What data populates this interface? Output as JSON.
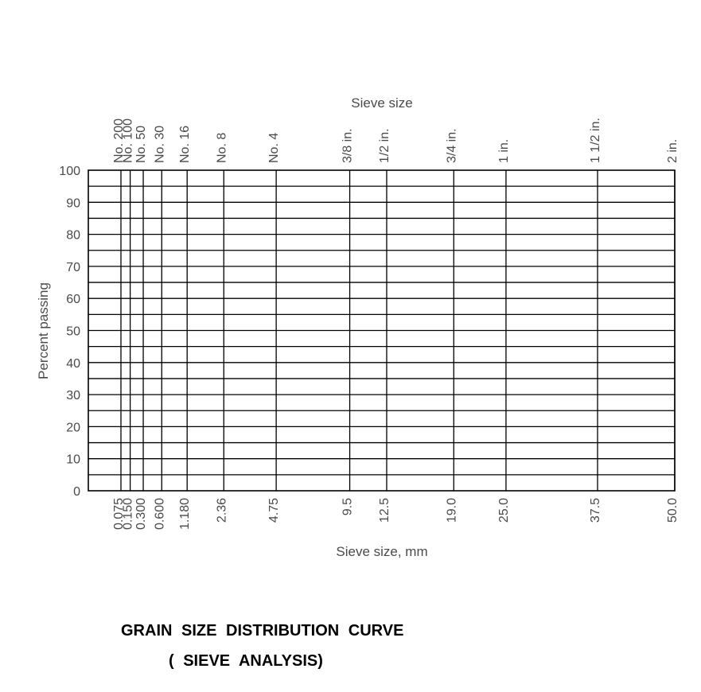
{
  "chart_data": {
    "type": "line",
    "title": "",
    "top_axis_label": "Sieve size",
    "xlabel": "Sieve size, mm",
    "ylabel": "Percent passing",
    "ylim": [
      0,
      100
    ],
    "y_ticks": [
      0,
      10,
      20,
      30,
      40,
      50,
      60,
      70,
      80,
      90,
      100
    ],
    "y_minor_step": 5,
    "x_scale": "sqrt (0.45 power gradation grid)",
    "sieves": [
      {
        "name": "No. 200",
        "mm": "0.075"
      },
      {
        "name": "No. 100",
        "mm": "0.150"
      },
      {
        "name": "No. 50",
        "mm": "0.300"
      },
      {
        "name": "No. 30",
        "mm": "0.600"
      },
      {
        "name": "No. 16",
        "mm": "1.180"
      },
      {
        "name": "No. 8",
        "mm": "2.36"
      },
      {
        "name": "No. 4",
        "mm": "4.75"
      },
      {
        "name": "3/8 in.",
        "mm": "9.5"
      },
      {
        "name": "1/2 in.",
        "mm": "12.5"
      },
      {
        "name": "3/4 in.",
        "mm": "19.0"
      },
      {
        "name": "1 in.",
        "mm": "25.0"
      },
      {
        "name": "1 1/2 in.",
        "mm": "37.5"
      },
      {
        "name": "2 in.",
        "mm": "50.0"
      }
    ],
    "series": [],
    "grid": true
  },
  "caption": {
    "line1": "GRAIN SIZE DISTRIBUTION CURVE",
    "line2": "( SIEVE ANALYSIS)"
  }
}
